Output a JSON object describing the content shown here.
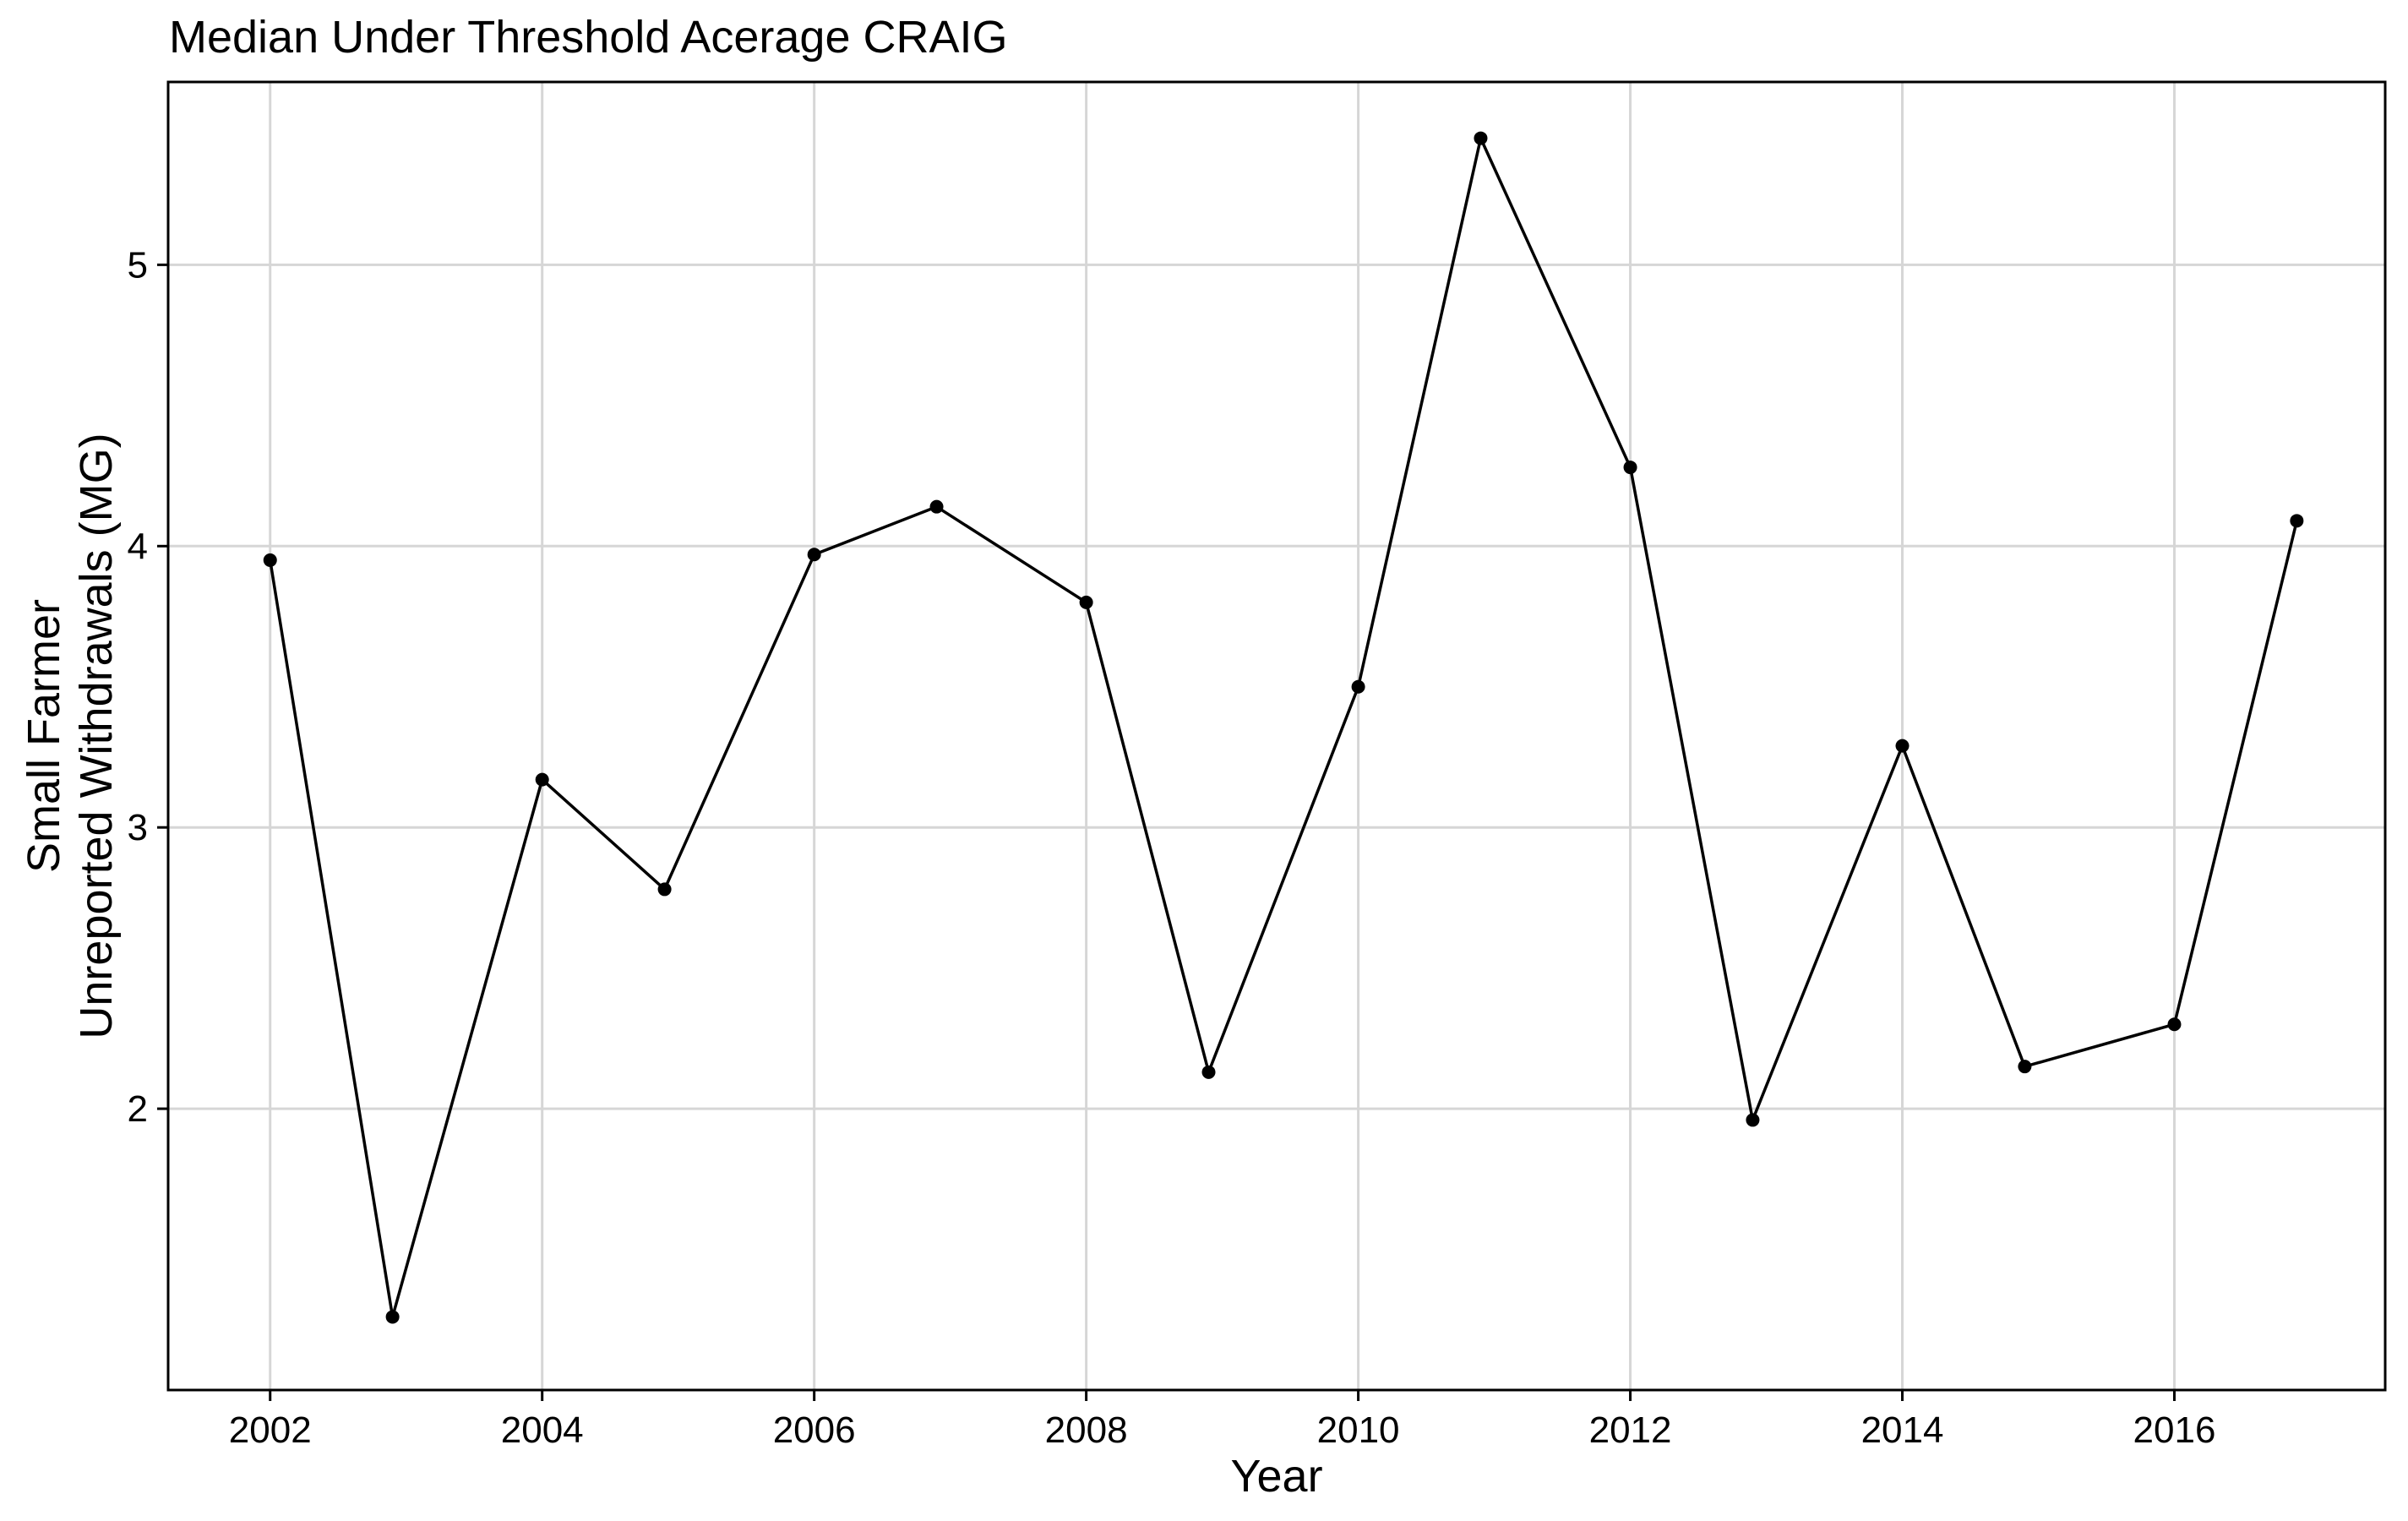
{
  "chart_data": {
    "type": "line",
    "title": "Median Under Threshold Acerage CRAIG",
    "xlabel": "Year",
    "ylabel_lines": [
      "Small Farmer",
      "Unreported Withdrawals (MG)"
    ],
    "xlim": [
      2001.25,
      2017.55
    ],
    "ylim": [
      1.0,
      5.65
    ],
    "x_ticks": [
      2002,
      2004,
      2006,
      2008,
      2010,
      2012,
      2014,
      2016
    ],
    "y_ticks": [
      2,
      3,
      4,
      5
    ],
    "grid": true,
    "x": [
      2002.0,
      2002.9,
      2004.0,
      2004.9,
      2006.0,
      2006.9,
      2008.0,
      2008.9,
      2010.0,
      2010.9,
      2012.0,
      2012.9,
      2014.0,
      2014.9,
      2016.0,
      2016.9
    ],
    "values": [
      3.95,
      1.26,
      3.17,
      2.78,
      3.97,
      4.14,
      3.8,
      2.13,
      3.5,
      5.45,
      4.28,
      1.96,
      3.29,
      2.15,
      2.3,
      4.09
    ],
    "colors": {
      "line": "#000000",
      "point": "#000000",
      "grid": "#d6d6d6",
      "panel": "#000000"
    }
  }
}
